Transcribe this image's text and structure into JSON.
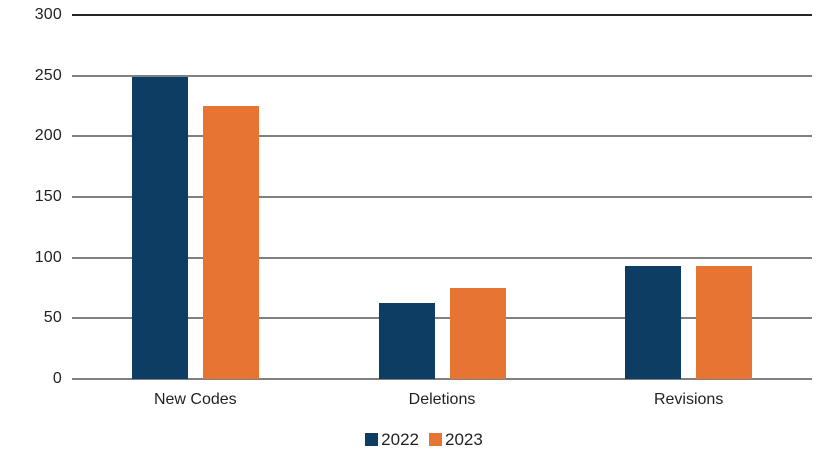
{
  "chart_data": {
    "type": "bar",
    "title": "",
    "xlabel": "",
    "ylabel": "",
    "categories": [
      "New Codes",
      "Deletions",
      "Revisions"
    ],
    "series": [
      {
        "name": "2022",
        "color": "#0d3d62",
        "values": [
          249,
          63,
          93
        ]
      },
      {
        "name": "2023",
        "color": "#e87434",
        "values": [
          225,
          75,
          93
        ]
      }
    ],
    "ylim": [
      0,
      300
    ],
    "yticks": [
      0,
      50,
      100,
      150,
      200,
      250,
      300
    ],
    "grid": true,
    "legend_position": "bottom-center"
  },
  "colors": {
    "background": "#ffffff",
    "gridline": "#808080",
    "gridline_top": "#262626",
    "text": "#231f20",
    "series_2022": "#0d3d62",
    "series_2023": "#e87434"
  }
}
